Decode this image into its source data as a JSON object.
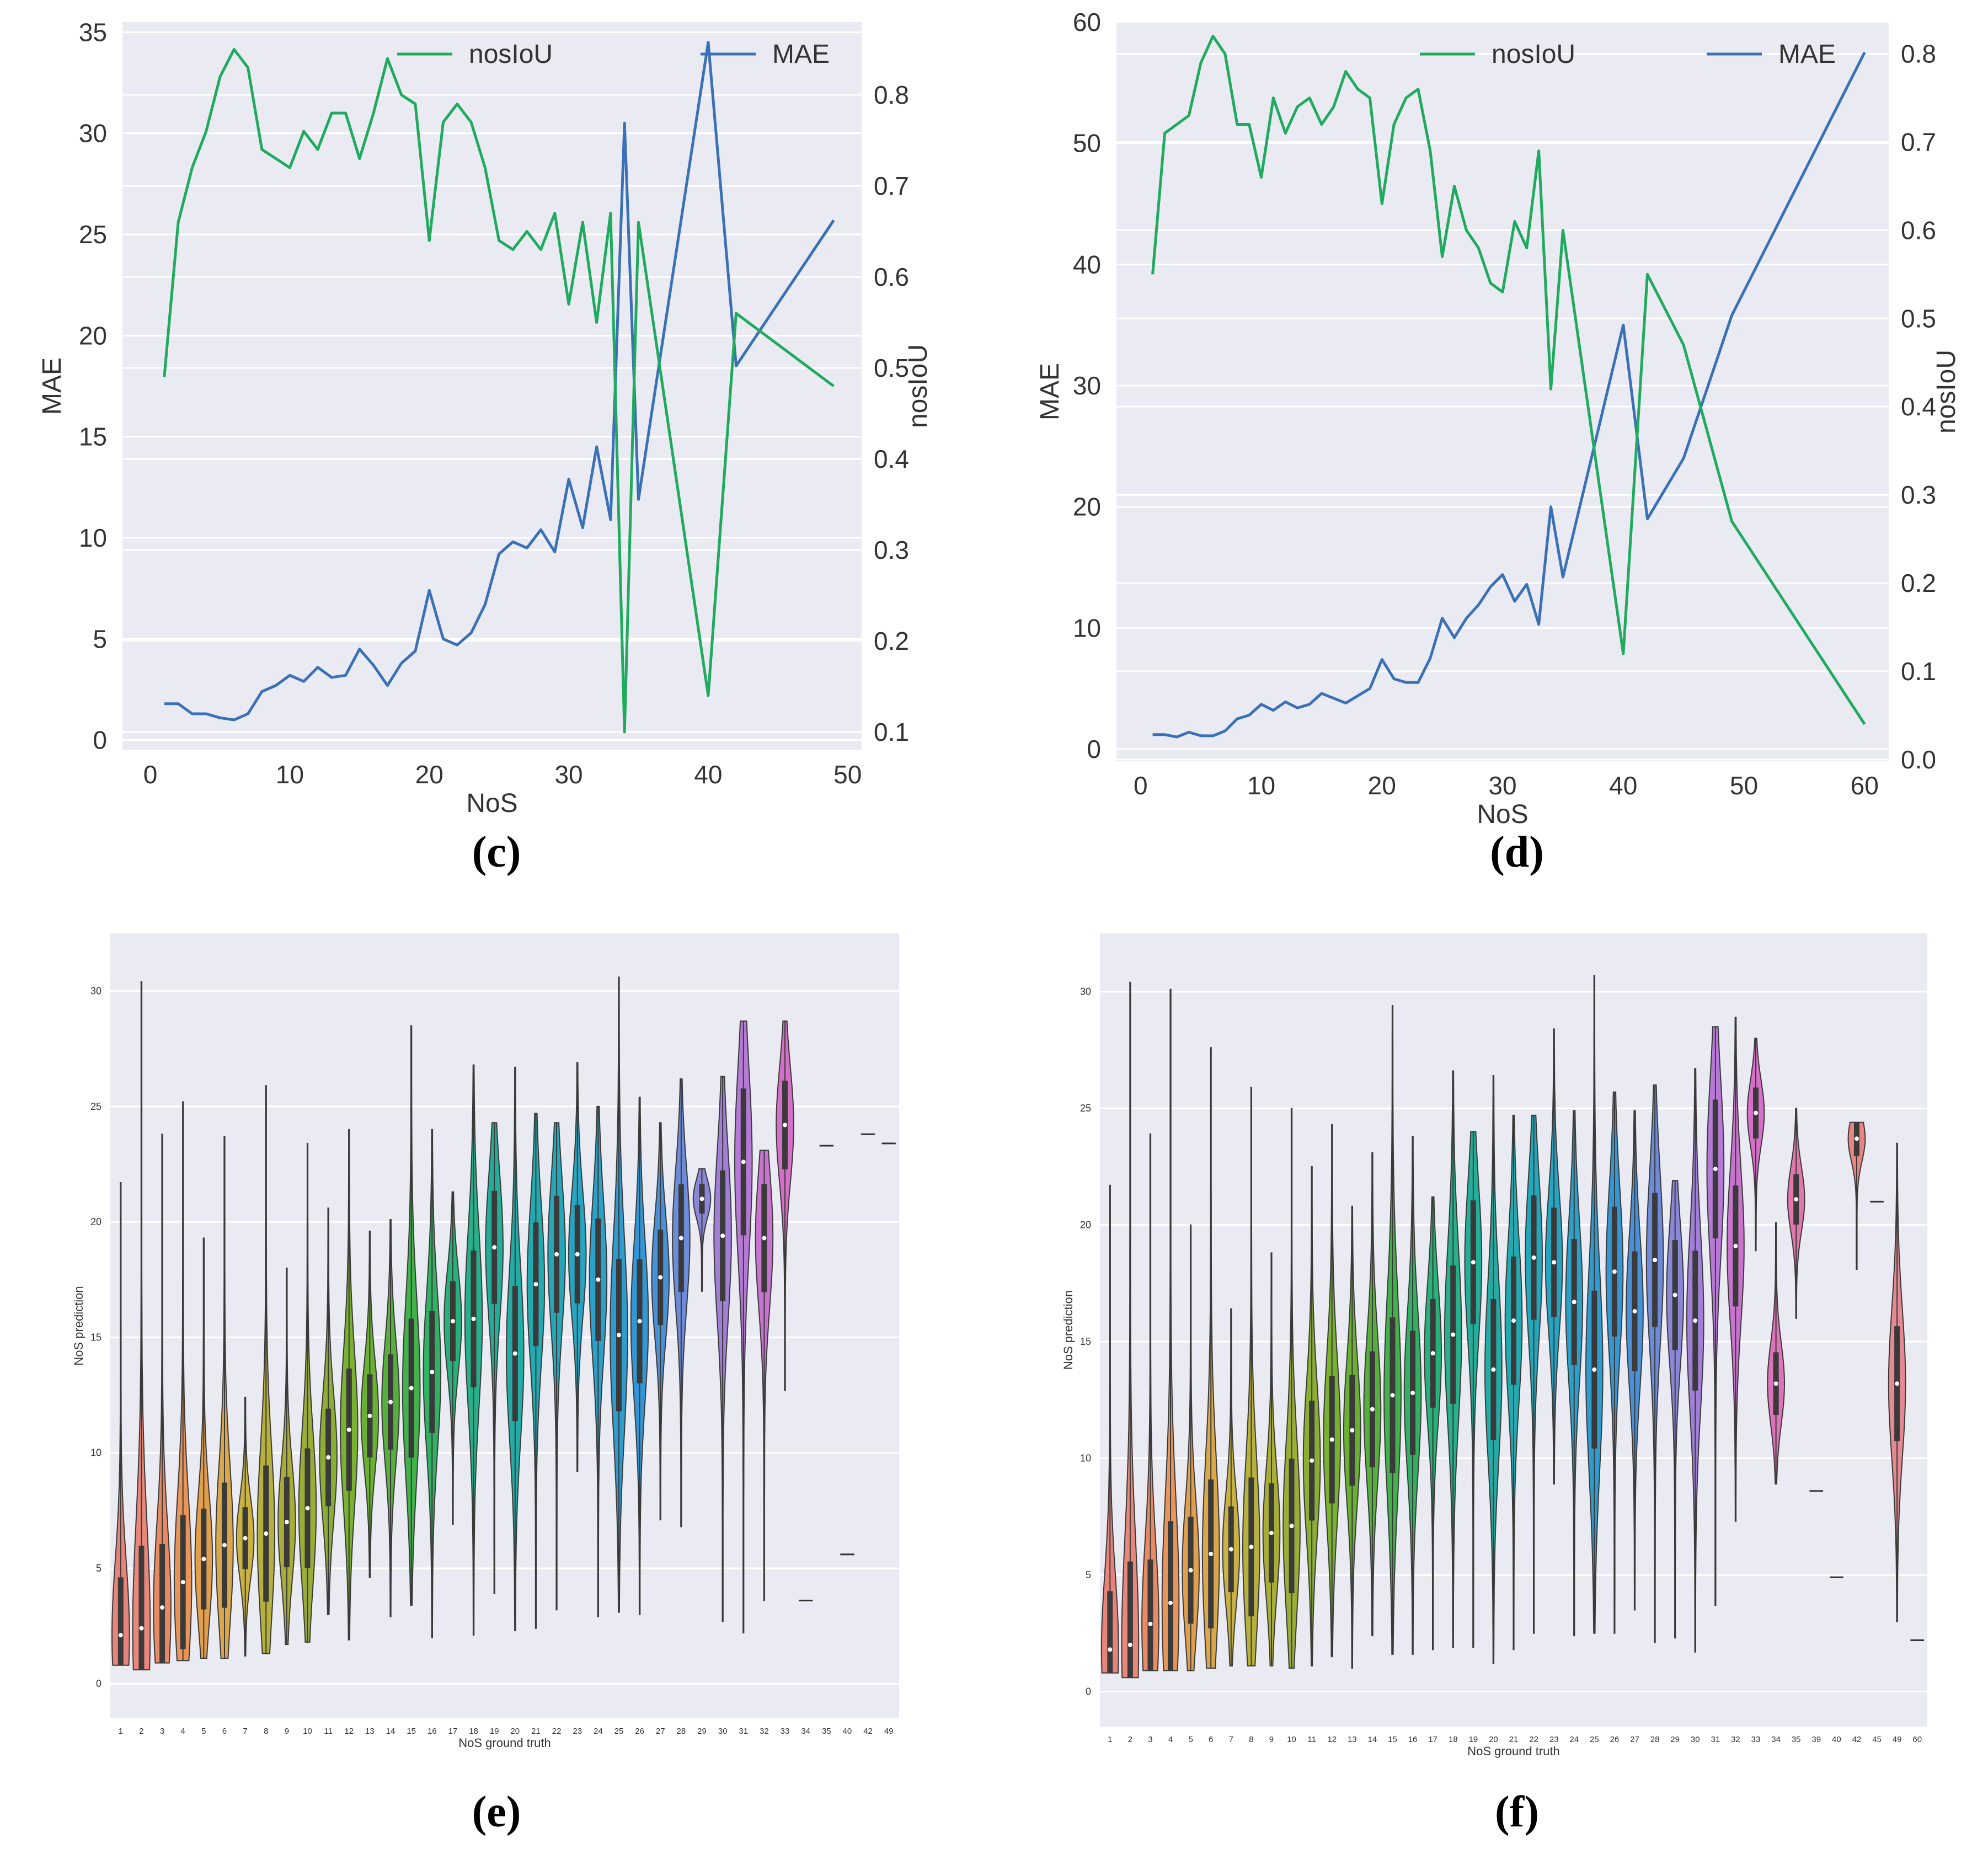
{
  "chart_data": [
    {
      "type": "line",
      "caption": "(c)",
      "xlabel": "NoS",
      "ylabel_left": "MAE",
      "ylabel_right": "nosIoU",
      "xlim": [
        -2,
        51
      ],
      "xticks": [
        "0",
        "10",
        "20",
        "30",
        "40",
        "50"
      ],
      "ylim_left": [
        -0.5,
        35.5
      ],
      "yticks_left": [
        "0",
        "5",
        "10",
        "15",
        "20",
        "25",
        "30",
        "35"
      ],
      "ylim_right": [
        0.08,
        0.88
      ],
      "yticks_right": [
        "0.1",
        "0.2",
        "0.3",
        "0.4",
        "0.5",
        "0.6",
        "0.7",
        "0.8"
      ],
      "legend": [
        "nosIoU",
        "MAE"
      ],
      "colors": {
        "nosiou": "#1faa5e",
        "mae": "#3a70b5",
        "bg": "#eaeaf2"
      },
      "series": [
        {
          "name": "MAE",
          "axis": "left",
          "x": [
            1,
            2,
            3,
            4,
            5,
            6,
            7,
            8,
            9,
            10,
            11,
            12,
            13,
            14,
            15,
            16,
            17,
            18,
            19,
            20,
            21,
            22,
            23,
            24,
            25,
            26,
            27,
            28,
            29,
            30,
            31,
            32,
            33,
            34,
            35,
            40,
            42,
            49
          ],
          "y": [
            1.8,
            1.8,
            1.3,
            1.3,
            1.1,
            1.0,
            1.3,
            2.4,
            2.7,
            3.2,
            2.9,
            3.6,
            3.1,
            3.2,
            4.5,
            3.7,
            2.7,
            3.8,
            4.4,
            7.4,
            5.0,
            4.7,
            5.3,
            6.7,
            9.2,
            9.8,
            9.5,
            10.4,
            9.3,
            12.9,
            10.5,
            14.5,
            10.9,
            30.5,
            11.9,
            34.5,
            18.5,
            25.7
          ]
        },
        {
          "name": "nosIoU",
          "axis": "right",
          "x": [
            1,
            2,
            3,
            4,
            5,
            6,
            7,
            8,
            9,
            10,
            11,
            12,
            13,
            14,
            15,
            16,
            17,
            18,
            19,
            20,
            21,
            22,
            23,
            24,
            25,
            26,
            27,
            28,
            29,
            30,
            31,
            32,
            33,
            34,
            35,
            40,
            42,
            49
          ],
          "y": [
            0.49,
            0.66,
            0.72,
            0.76,
            0.82,
            0.85,
            0.83,
            0.74,
            0.73,
            0.72,
            0.76,
            0.74,
            0.78,
            0.78,
            0.73,
            0.78,
            0.84,
            0.8,
            0.79,
            0.64,
            0.77,
            0.79,
            0.77,
            0.72,
            0.64,
            0.63,
            0.65,
            0.63,
            0.67,
            0.57,
            0.66,
            0.55,
            0.67,
            0.1,
            0.66,
            0.14,
            0.56,
            0.48
          ]
        }
      ]
    },
    {
      "type": "line",
      "caption": "(d)",
      "xlabel": "NoS",
      "ylabel_left": "MAE",
      "ylabel_right": "nosIoU",
      "xlim": [
        -2,
        62
      ],
      "xticks": [
        "0",
        "10",
        "20",
        "30",
        "40",
        "50",
        "60"
      ],
      "ylim_left": [
        -1,
        60
      ],
      "yticks_left": [
        "0",
        "10",
        "20",
        "30",
        "40",
        "50",
        "60"
      ],
      "ylim_right": [
        -0.002,
        0.836
      ],
      "yticks_right": [
        "0.0",
        "0.1",
        "0.2",
        "0.3",
        "0.4",
        "0.5",
        "0.6",
        "0.7",
        "0.8"
      ],
      "legend": [
        "nosIoU",
        "MAE"
      ],
      "colors": {
        "nosiou": "#1faa5e",
        "mae": "#3a70b5",
        "bg": "#eaeaf2"
      },
      "series": [
        {
          "name": "MAE",
          "axis": "left",
          "x": [
            1,
            2,
            3,
            4,
            5,
            6,
            7,
            8,
            9,
            10,
            11,
            12,
            13,
            14,
            15,
            16,
            17,
            18,
            19,
            20,
            21,
            22,
            23,
            24,
            25,
            26,
            27,
            28,
            29,
            30,
            31,
            32,
            33,
            34,
            35,
            40,
            42,
            45,
            49,
            60
          ],
          "y": [
            1.2,
            1.2,
            1.0,
            1.4,
            1.1,
            1.1,
            1.5,
            2.5,
            2.8,
            3.7,
            3.2,
            3.9,
            3.4,
            3.7,
            4.6,
            4.2,
            3.8,
            4.4,
            5.0,
            7.4,
            5.8,
            5.5,
            5.5,
            7.5,
            10.8,
            9.2,
            10.8,
            11.9,
            13.4,
            14.4,
            12.2,
            13.6,
            10.3,
            20.0,
            14.2,
            35.0,
            19.0,
            24.0,
            35.8,
            57.5
          ]
        },
        {
          "name": "nosIoU",
          "axis": "right",
          "x": [
            1,
            2,
            3,
            4,
            5,
            6,
            7,
            8,
            9,
            10,
            11,
            12,
            13,
            14,
            15,
            16,
            17,
            18,
            19,
            20,
            21,
            22,
            23,
            24,
            25,
            26,
            27,
            28,
            29,
            30,
            31,
            32,
            33,
            34,
            35,
            40,
            42,
            45,
            49,
            60
          ],
          "y": [
            0.55,
            0.71,
            0.72,
            0.73,
            0.79,
            0.82,
            0.8,
            0.72,
            0.72,
            0.66,
            0.75,
            0.71,
            0.74,
            0.75,
            0.72,
            0.74,
            0.78,
            0.76,
            0.75,
            0.63,
            0.72,
            0.75,
            0.76,
            0.69,
            0.57,
            0.65,
            0.6,
            0.58,
            0.54,
            0.53,
            0.61,
            0.58,
            0.69,
            0.42,
            0.6,
            0.12,
            0.55,
            0.47,
            0.27,
            0.04
          ]
        }
      ]
    },
    {
      "type": "violin",
      "caption": "(e)",
      "xlabel": "NoS ground truth",
      "ylabel": "NoS prediction",
      "ylim": [
        -1.5,
        32.5
      ],
      "yticks": [
        "0",
        "5",
        "10",
        "15",
        "20",
        "25",
        "30"
      ],
      "categories": [
        "1",
        "2",
        "3",
        "4",
        "5",
        "6",
        "7",
        "8",
        "9",
        "10",
        "11",
        "12",
        "13",
        "14",
        "15",
        "16",
        "17",
        "18",
        "19",
        "20",
        "21",
        "22",
        "23",
        "24",
        "25",
        "26",
        "27",
        "28",
        "29",
        "30",
        "31",
        "32",
        "33",
        "34",
        "35",
        "40",
        "42",
        "49"
      ],
      "min": [
        0.8,
        0.6,
        0.9,
        1.0,
        1.1,
        1.1,
        1.2,
        1.3,
        1.7,
        1.8,
        3.0,
        1.9,
        4.6,
        2.9,
        3.4,
        2.0,
        6.9,
        2.1,
        3.9,
        2.3,
        2.4,
        3.2,
        9.2,
        2.9,
        3.1,
        3.0,
        7.1,
        6.8,
        17.0,
        2.7,
        2.2,
        3.6,
        12.7,
        3.6,
        23.2,
        5.6,
        23.5,
        23.4
      ],
      "max": [
        21.7,
        30.4,
        23.8,
        25.2,
        19.3,
        23.7,
        12.4,
        25.9,
        18.0,
        23.4,
        20.6,
        24.0,
        19.6,
        20.1,
        28.5,
        24.0,
        21.3,
        26.8,
        24.3,
        26.7,
        24.7,
        24.3,
        26.9,
        25.0,
        30.6,
        25.4,
        24.3,
        26.2,
        22.3,
        26.3,
        28.7,
        23.1,
        28.7,
        3.6,
        23.4,
        5.6,
        24.0,
        23.4
      ],
      "median": [
        2.1,
        2.4,
        3.3,
        4.4,
        5.4,
        6.0,
        6.3,
        6.5,
        7.0,
        7.6,
        9.8,
        11.0,
        11.6,
        12.2,
        12.8,
        13.5,
        15.7,
        15.8,
        18.9,
        14.3,
        17.3,
        18.6,
        18.6,
        17.5,
        15.1,
        15.7,
        17.6,
        19.3,
        21.0,
        19.4,
        22.6,
        19.3,
        24.2,
        3.6,
        23.3,
        5.6,
        23.8,
        23.4
      ],
      "colors": [
        "#e8837a",
        "#e8877a",
        "#e98a62",
        "#e99559",
        "#e29f4b",
        "#d9a84a",
        "#c9b142",
        "#b6b03d",
        "#a8ad38",
        "#9aae36",
        "#8bae33",
        "#7ab131",
        "#6ab033",
        "#56b03b",
        "#42b24a",
        "#31b262",
        "#27b27a",
        "#26b08b",
        "#23ae99",
        "#23aca5",
        "#22aab0",
        "#24a7b9",
        "#27a4c1",
        "#2ba0c8",
        "#2f9ccf",
        "#3497d5",
        "#4891d8",
        "#6d8bd8",
        "#8a86d8",
        "#a17fd8",
        "#b679d6",
        "#c874cf",
        "#d66fc7",
        "#dd73b9",
        "#e277ac",
        "#e47c9e",
        "#e6818f",
        "#e88580"
      ]
    },
    {
      "type": "violin",
      "caption": "(f)",
      "xlabel": "NoS ground truth",
      "ylabel": "NoS prediction",
      "ylim": [
        -1.5,
        32.5
      ],
      "yticks": [
        "0",
        "5",
        "10",
        "15",
        "20",
        "25",
        "30"
      ],
      "categories": [
        "1",
        "2",
        "3",
        "4",
        "5",
        "6",
        "7",
        "8",
        "9",
        "10",
        "11",
        "12",
        "13",
        "14",
        "15",
        "16",
        "17",
        "18",
        "19",
        "20",
        "21",
        "22",
        "23",
        "24",
        "25",
        "26",
        "27",
        "28",
        "29",
        "30",
        "31",
        "32",
        "33",
        "34",
        "35",
        "39",
        "40",
        "42",
        "45",
        "49",
        "60"
      ],
      "min": [
        0.8,
        0.6,
        0.9,
        0.9,
        0.9,
        1.0,
        1.1,
        1.1,
        1.1,
        1.0,
        1.1,
        1.5,
        1.0,
        2.4,
        1.6,
        1.6,
        1.8,
        1.9,
        1.9,
        1.2,
        1.8,
        2.5,
        8.9,
        2.4,
        2.5,
        2.5,
        3.5,
        2.1,
        2.3,
        1.7,
        3.7,
        7.3,
        18.9,
        8.9,
        16.0,
        8.6,
        4.9,
        18.1,
        21.0,
        3.0,
        2.2
      ],
      "max": [
        21.7,
        30.4,
        23.9,
        30.1,
        20.0,
        27.6,
        16.4,
        25.9,
        18.8,
        25.0,
        22.5,
        24.3,
        20.8,
        23.1,
        29.4,
        23.8,
        21.2,
        26.6,
        24.0,
        26.4,
        24.7,
        24.7,
        28.4,
        24.9,
        30.7,
        25.7,
        24.9,
        26.0,
        21.9,
        26.7,
        28.5,
        28.9,
        28.0,
        20.1,
        25.0,
        8.6,
        4.9,
        24.4,
        21.0,
        23.5,
        2.2
      ],
      "median": [
        1.8,
        2.0,
        2.9,
        3.8,
        5.2,
        5.9,
        6.1,
        6.2,
        6.8,
        7.1,
        9.9,
        10.8,
        11.2,
        12.1,
        12.7,
        12.8,
        14.5,
        15.3,
        18.4,
        13.8,
        15.9,
        18.6,
        18.4,
        16.7,
        13.8,
        18.0,
        16.3,
        18.5,
        17.0,
        15.9,
        22.4,
        19.1,
        24.8,
        13.2,
        21.1,
        8.6,
        4.9,
        23.7,
        21.0,
        13.2,
        2.2
      ],
      "colors": [
        "#e8837a",
        "#e8877a",
        "#e98a62",
        "#e99559",
        "#e29f4b",
        "#d9a84a",
        "#c9b142",
        "#b6b03d",
        "#a8ad38",
        "#9aae36",
        "#8bae33",
        "#7ab131",
        "#6ab033",
        "#56b03b",
        "#42b24a",
        "#31b262",
        "#27b27a",
        "#26b08b",
        "#23ae99",
        "#23aca5",
        "#22aab0",
        "#24a7b9",
        "#27a4c1",
        "#2ba0c8",
        "#2f9ccf",
        "#3497d5",
        "#4891d8",
        "#6d8bd8",
        "#8a86d8",
        "#a17fd8",
        "#b679d6",
        "#c874cf",
        "#d66fc7",
        "#dd73b9",
        "#e277ac",
        "#e47c9e",
        "#e6818f",
        "#e88580",
        "#e8837a",
        "#e58a92",
        "#e8837a"
      ]
    }
  ]
}
